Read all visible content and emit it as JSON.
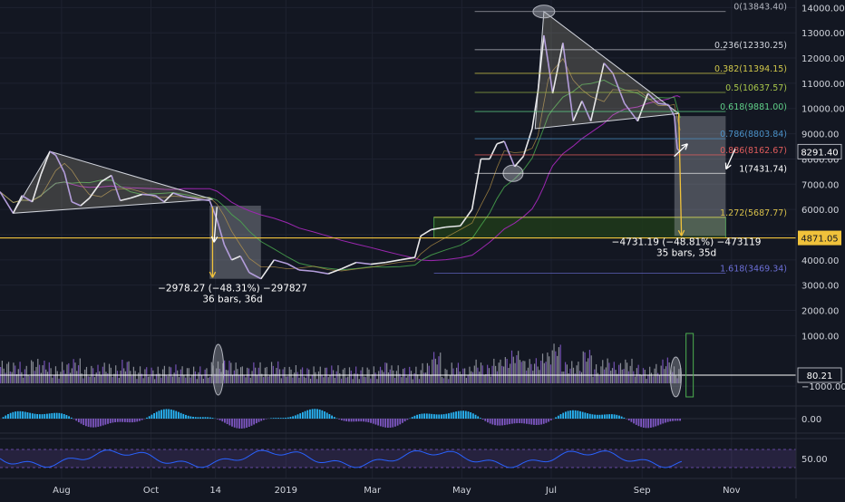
{
  "chart_data": {
    "type": "line",
    "price_series": {
      "points": [
        [
          "2018-06-20",
          6700
        ],
        [
          "2018-06-29",
          5850
        ],
        [
          "2018-07-05",
          6550
        ],
        [
          "2018-07-12",
          6300
        ],
        [
          "2018-07-18",
          7400
        ],
        [
          "2018-07-24",
          8300
        ],
        [
          "2018-07-28",
          8150
        ],
        [
          "2018-08-03",
          7450
        ],
        [
          "2018-08-08",
          6300
        ],
        [
          "2018-08-14",
          6150
        ],
        [
          "2018-08-20",
          6450
        ],
        [
          "2018-08-28",
          7100
        ],
        [
          "2018-09-04",
          7350
        ],
        [
          "2018-09-10",
          6350
        ],
        [
          "2018-09-17",
          6450
        ],
        [
          "2018-09-25",
          6600
        ],
        [
          "2018-10-04",
          6550
        ],
        [
          "2018-10-10",
          6300
        ],
        [
          "2018-10-16",
          6650
        ],
        [
          "2018-10-24",
          6500
        ],
        [
          "2018-11-03",
          6400
        ],
        [
          "2018-11-10",
          6350
        ],
        [
          "2018-11-15",
          5600
        ],
        [
          "2018-11-20",
          4600
        ],
        [
          "2018-11-25",
          4000
        ],
        [
          "2018-12-01",
          4150
        ],
        [
          "2018-12-07",
          3500
        ],
        [
          "2018-12-15",
          3250
        ],
        [
          "2018-12-24",
          4000
        ],
        [
          "2019-01-02",
          3850
        ],
        [
          "2019-01-10",
          3600
        ],
        [
          "2019-01-20",
          3550
        ],
        [
          "2019-01-30",
          3450
        ],
        [
          "2019-02-08",
          3650
        ],
        [
          "2019-02-18",
          3900
        ],
        [
          "2019-02-28",
          3830
        ],
        [
          "2019-03-10",
          3900
        ],
        [
          "2019-03-20",
          4000
        ],
        [
          "2019-03-30",
          4100
        ],
        [
          "2019-04-03",
          4950
        ],
        [
          "2019-04-10",
          5200
        ],
        [
          "2019-04-20",
          5300
        ],
        [
          "2019-04-30",
          5350
        ],
        [
          "2019-05-08",
          6000
        ],
        [
          "2019-05-14",
          8000
        ],
        [
          "2019-05-20",
          8000
        ],
        [
          "2019-05-25",
          8600
        ],
        [
          "2019-05-30",
          8700
        ],
        [
          "2019-06-06",
          7700
        ],
        [
          "2019-06-12",
          8100
        ],
        [
          "2019-06-18",
          9200
        ],
        [
          "2019-06-22",
          10700
        ],
        [
          "2019-06-26",
          12900
        ],
        [
          "2019-06-29",
          11800
        ],
        [
          "2019-07-02",
          10600
        ],
        [
          "2019-07-09",
          12600
        ],
        [
          "2019-07-16",
          9500
        ],
        [
          "2019-07-22",
          10300
        ],
        [
          "2019-07-28",
          9500
        ],
        [
          "2019-08-06",
          11800
        ],
        [
          "2019-08-12",
          11400
        ],
        [
          "2019-08-20",
          10200
        ],
        [
          "2019-08-29",
          9500
        ],
        [
          "2019-09-05",
          10600
        ],
        [
          "2019-09-12",
          10200
        ],
        [
          "2019-09-19",
          10150
        ],
        [
          "2019-09-23",
          9700
        ],
        [
          "2019-09-25",
          8400
        ],
        [
          "2019-09-27",
          8291.4
        ]
      ]
    },
    "fib_levels": [
      {
        "label": "0(13843.40)",
        "value": 13843.4,
        "color": "#b2b5be"
      },
      {
        "label": "0.236(12330.25)",
        "value": 12330.25,
        "color": "#d1d4dc"
      },
      {
        "label": "0.382(11394.15)",
        "value": 11394.15,
        "color": "#d1c84a"
      },
      {
        "label": "0.5(10637.57)",
        "value": 10637.57,
        "color": "#a8c64a"
      },
      {
        "label": "0.618(9881.00)",
        "value": 9881.0,
        "color": "#5fcf87"
      },
      {
        "label": "0.786(8803.84)",
        "value": 8803.84,
        "color": "#4a90c6"
      },
      {
        "label": "0.886(8162.67)",
        "value": 8162.67,
        "color": "#e05c5c"
      },
      {
        "label": "1(7431.74)",
        "value": 7431.74,
        "color": "#ffffff"
      },
      {
        "label": "1.272(5687.77)",
        "value": 5687.77,
        "color": "#d9c14a"
      },
      {
        "label": "1.618(3469.34)",
        "value": 3469.34,
        "color": "#6b6ed6"
      }
    ],
    "y_axis": {
      "ticks": [
        "14000.00",
        "13000.00",
        "12000.00",
        "11000.00",
        "10000.00",
        "9000.00",
        "8000.00",
        "7000.00",
        "6000.00",
        "5000.00",
        "4000.00",
        "3000.00",
        "2000.00",
        "1000.00",
        "−1000.00"
      ],
      "tick_values": [
        14000,
        13000,
        12000,
        11000,
        10000,
        9000,
        8000,
        7000,
        6000,
        5000,
        4000,
        3000,
        2000,
        1000,
        -1000
      ],
      "ylim": [
        -1500,
        14300
      ]
    },
    "x_axis": {
      "labels": [
        "Aug",
        "Oct",
        "14",
        "2019",
        "Mar",
        "May",
        "Jul",
        "Sep",
        "Nov"
      ],
      "label_dates": [
        "2018-08-01",
        "2018-10-01",
        "2018-11-14",
        "2019-01-01",
        "2019-03-01",
        "2019-05-01",
        "2019-07-01",
        "2019-09-01",
        "2019-11-01"
      ],
      "xlim": [
        "2018-06-20",
        "2019-12-15"
      ]
    },
    "price_badges": [
      {
        "text": "8291.40",
        "value": 8291.4,
        "style": "dark"
      },
      {
        "text": "4871.05",
        "value": 4871.05,
        "style": "yellow"
      },
      {
        "text": "80.21",
        "value": 80.21,
        "style": "dark"
      }
    ],
    "oscillator_badges": [
      {
        "text": "0.00",
        "value": 0
      },
      {
        "text": "50.00",
        "value": 50
      }
    ],
    "measurements": [
      {
        "change": "−2978.27 (−48.31%) −297827",
        "bars": "36 bars, 36d",
        "from": "2018-11-10",
        "to": "2018-12-15",
        "high": 6150,
        "low": 3250
      },
      {
        "change": "−4731.19 (−48.81%) −473119",
        "bars": "35 bars, 35d",
        "from": "2019-09-23",
        "to": "2019-10-28",
        "high": 9700,
        "low": 4950
      }
    ],
    "horizontal_lines": [
      {
        "value": 4871.05,
        "color": "#f0c23b"
      },
      {
        "value": 80.21,
        "color": "#ffffff"
      }
    ],
    "colors": {
      "background": "#131722",
      "grid": "#1e2230",
      "candle": "#e0e0e0",
      "ma_purple": "#9c27b0",
      "ma_green": "#4caf50",
      "volume_up": "#9598a1",
      "volume_down": "#7e57c2",
      "macd_up": "#29b6f6",
      "macd_down": "#7e57c2",
      "rsi": "#2962ff",
      "fib_zone": "#2e3b1e",
      "measure_box": "rgba(178,181,190,0.35)",
      "arrow": "#f0c23b"
    }
  }
}
